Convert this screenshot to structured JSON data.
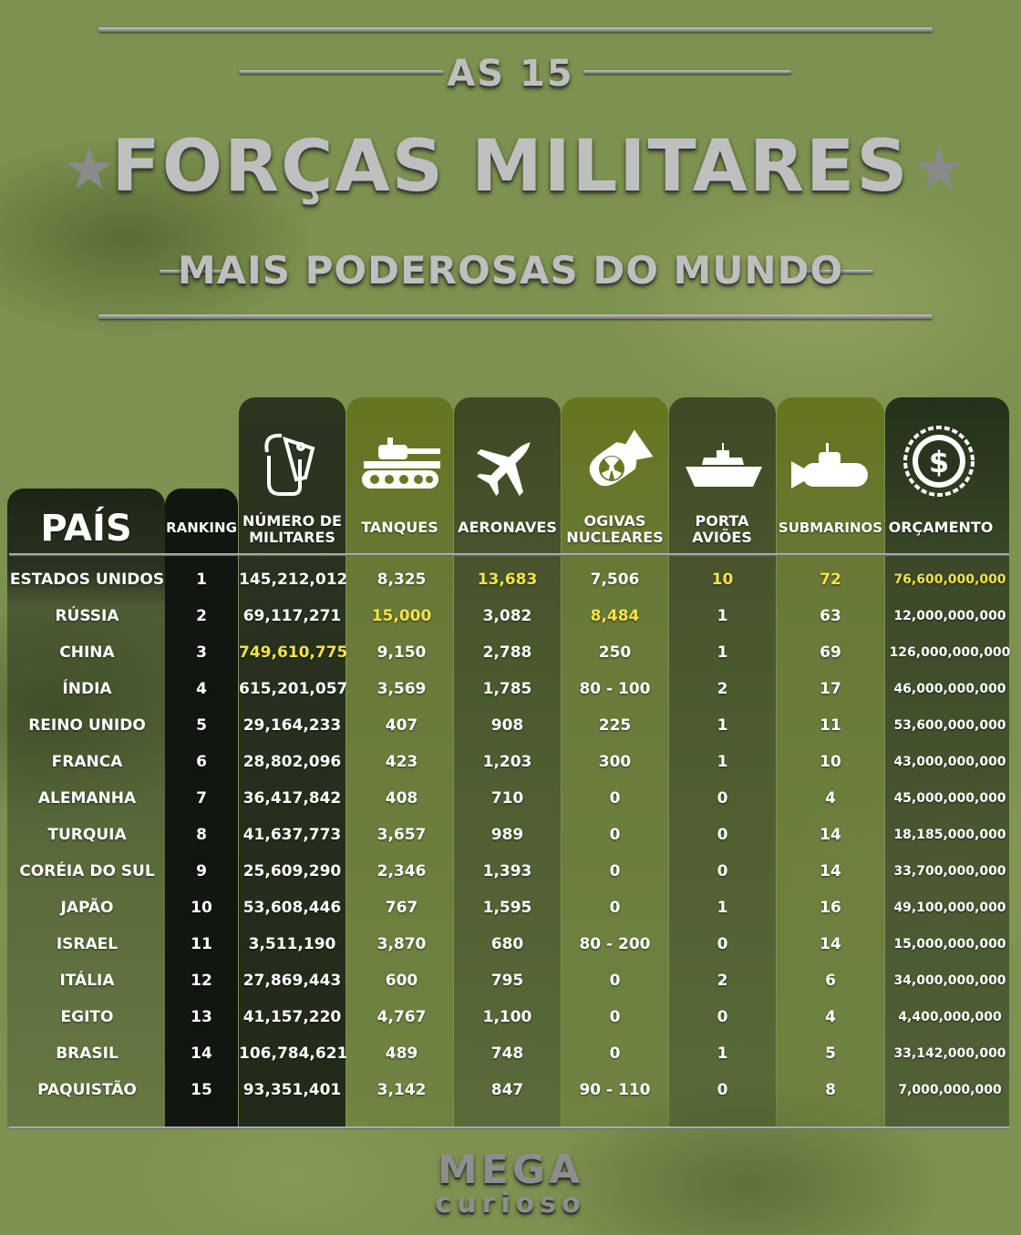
{
  "title": {
    "top": "AS 15",
    "main": "FORÇAS MILITARES",
    "sub": "MAIS PODEROSAS DO MUNDO"
  },
  "headers": {
    "pais": "PAÍS",
    "ranking": "RANKING",
    "militares": "NÚMERO DE MILITARES",
    "tanques": "TANQUES",
    "aeronaves": "AERONAVES",
    "ogivas": "OGIVAS NUCLEARES",
    "porta": "PORTA AVIÕES",
    "submarinos": "SUBMARINOS",
    "orcamento": "ORÇAMENTO"
  },
  "icons": [
    "dog-tag-icon",
    "tank-icon",
    "fighter-jet-icon",
    "nuclear-bomb-icon",
    "aircraft-carrier-icon",
    "submarine-icon",
    "dollar-coin-icon"
  ],
  "rows": [
    {
      "pais": "ESTADOS UNIDOS",
      "ranking": "1",
      "militares": "145,212,012",
      "tanques": "8,325",
      "aeronaves": "13,683",
      "ogivas": "7,506",
      "porta": "10",
      "submarinos": "72",
      "orcamento": "76,600,000,000"
    },
    {
      "pais": "RÚSSIA",
      "ranking": "2",
      "militares": "69,117,271",
      "tanques": "15,000",
      "aeronaves": "3,082",
      "ogivas": "8,484",
      "porta": "1",
      "submarinos": "63",
      "orcamento": "12,000,000,000"
    },
    {
      "pais": "CHINA",
      "ranking": "3",
      "militares": "749,610,775",
      "tanques": "9,150",
      "aeronaves": "2,788",
      "ogivas": "250",
      "porta": "1",
      "submarinos": "69",
      "orcamento": "126,000,000,000"
    },
    {
      "pais": "ÍNDIA",
      "ranking": "4",
      "militares": "615,201,057",
      "tanques": "3,569",
      "aeronaves": "1,785",
      "ogivas": "80 - 100",
      "porta": "2",
      "submarinos": "17",
      "orcamento": "46,000,000,000"
    },
    {
      "pais": "REINO UNIDO",
      "ranking": "5",
      "militares": "29,164,233",
      "tanques": "407",
      "aeronaves": "908",
      "ogivas": "225",
      "porta": "1",
      "submarinos": "11",
      "orcamento": "53,600,000,000"
    },
    {
      "pais": "FRANCA",
      "ranking": "6",
      "militares": "28,802,096",
      "tanques": "423",
      "aeronaves": "1,203",
      "ogivas": "300",
      "porta": "1",
      "submarinos": "10",
      "orcamento": "43,000,000,000"
    },
    {
      "pais": "ALEMANHA",
      "ranking": "7",
      "militares": "36,417,842",
      "tanques": "408",
      "aeronaves": "710",
      "ogivas": "0",
      "porta": "0",
      "submarinos": "4",
      "orcamento": "45,000,000,000"
    },
    {
      "pais": "TURQUIA",
      "ranking": "8",
      "militares": "41,637,773",
      "tanques": "3,657",
      "aeronaves": "989",
      "ogivas": "0",
      "porta": "0",
      "submarinos": "14",
      "orcamento": "18,185,000,000"
    },
    {
      "pais": "CORÉIA DO SUL",
      "ranking": "9",
      "militares": "25,609,290",
      "tanques": "2,346",
      "aeronaves": "1,393",
      "ogivas": "0",
      "porta": "0",
      "submarinos": "14",
      "orcamento": "33,700,000,000"
    },
    {
      "pais": "JAPÃO",
      "ranking": "10",
      "militares": "53,608,446",
      "tanques": "767",
      "aeronaves": "1,595",
      "ogivas": "0",
      "porta": "1",
      "submarinos": "16",
      "orcamento": "49,100,000,000"
    },
    {
      "pais": "ISRAEL",
      "ranking": "11",
      "militares": "3,511,190",
      "tanques": "3,870",
      "aeronaves": "680",
      "ogivas": "80 - 200",
      "porta": "0",
      "submarinos": "14",
      "orcamento": "15,000,000,000"
    },
    {
      "pais": "ITÁLIA",
      "ranking": "12",
      "militares": "27,869,443",
      "tanques": "600",
      "aeronaves": "795",
      "ogivas": "0",
      "porta": "2",
      "submarinos": "6",
      "orcamento": "34,000,000,000"
    },
    {
      "pais": "EGITO",
      "ranking": "13",
      "militares": "41,157,220",
      "tanques": "4,767",
      "aeronaves": "1,100",
      "ogivas": "0",
      "porta": "0",
      "submarinos": "4",
      "orcamento": "4,400,000,000"
    },
    {
      "pais": "BRASIL",
      "ranking": "14",
      "militares": "106,784,621",
      "tanques": "489",
      "aeronaves": "748",
      "ogivas": "0",
      "porta": "1",
      "submarinos": "5",
      "orcamento": "33,142,000,000"
    },
    {
      "pais": "PAQUISTÃO",
      "ranking": "15",
      "militares": "93,351,401",
      "tanques": "3,142",
      "aeronaves": "847",
      "ogivas": "90 - 110",
      "porta": "0",
      "submarinos": "8",
      "orcamento": "7,000,000,000"
    }
  ],
  "highlights": [
    {
      "row": 0,
      "col": "aeronaves"
    },
    {
      "row": 0,
      "col": "porta"
    },
    {
      "row": 0,
      "col": "submarinos"
    },
    {
      "row": 0,
      "col": "orcamento"
    },
    {
      "row": 1,
      "col": "tanques"
    },
    {
      "row": 1,
      "col": "ogivas"
    },
    {
      "row": 2,
      "col": "militares"
    }
  ],
  "colors": {
    "highlight": "#f4e34a",
    "text": "#ffffff",
    "background": "#7d9150"
  },
  "logo": {
    "line1": "MEGA",
    "line2": "curioso"
  }
}
